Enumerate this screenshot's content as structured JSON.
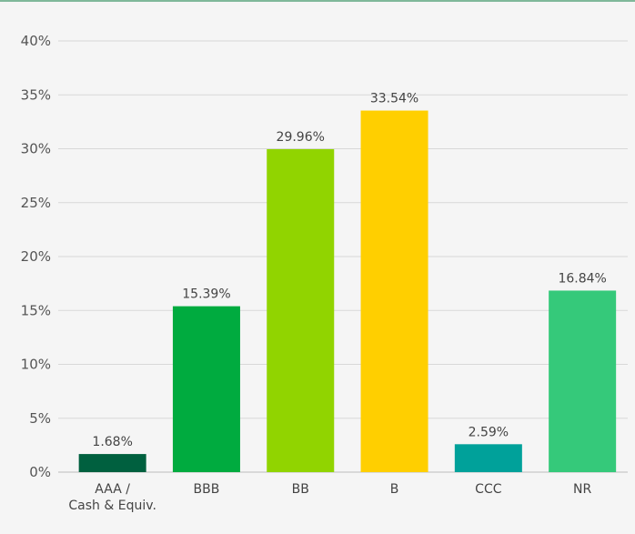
{
  "chart_data": {
    "type": "bar",
    "categories": [
      "AAA / Cash & Equiv.",
      "BBB",
      "BB",
      "B",
      "CCC",
      "NR"
    ],
    "category_lines": [
      [
        "AAA /",
        "Cash & Equiv."
      ],
      [
        "BBB"
      ],
      [
        "BB"
      ],
      [
        "B"
      ],
      [
        "CCC"
      ],
      [
        "NR"
      ]
    ],
    "values": [
      1.68,
      15.39,
      29.96,
      33.54,
      2.59,
      16.84
    ],
    "value_labels": [
      "1.68%",
      "15.39%",
      "29.96%",
      "33.54%",
      "2.59%",
      "16.84%"
    ],
    "colors": [
      "#00603f",
      "#00ab3f",
      "#91d400",
      "#ffcf00",
      "#00a19a",
      "#35c97a"
    ],
    "ylim": [
      0,
      40
    ],
    "yticks": [
      0,
      5,
      10,
      15,
      20,
      25,
      30,
      35,
      40
    ],
    "ytick_labels": [
      "0%",
      "5%",
      "10%",
      "15%",
      "20%",
      "25%",
      "30%",
      "35%",
      "40%"
    ],
    "grid": true,
    "title": "",
    "xlabel": "",
    "ylabel": ""
  },
  "colors": {
    "background": "#f5f5f5",
    "top_rule": "#7fb89a",
    "grid": "#d8d8d8"
  }
}
